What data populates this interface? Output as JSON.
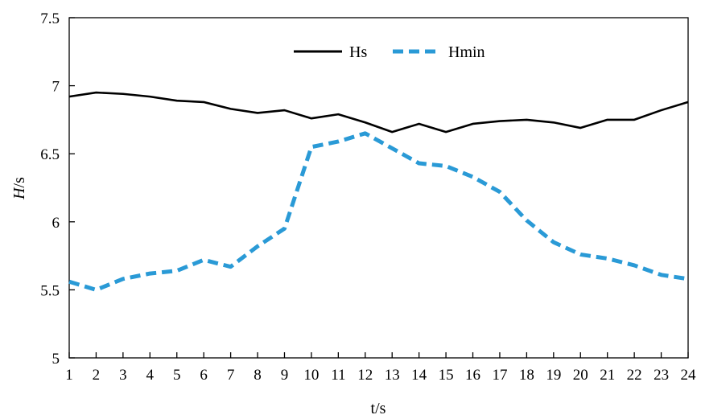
{
  "chart_data": {
    "type": "line",
    "title": "",
    "xlabel": "t/s",
    "ylabel": "H/s",
    "ylabel_italic_part": "H",
    "ylabel_rest": "/s",
    "x": [
      1,
      2,
      3,
      4,
      5,
      6,
      7,
      8,
      9,
      10,
      11,
      12,
      13,
      14,
      15,
      16,
      17,
      18,
      19,
      20,
      21,
      22,
      23,
      24
    ],
    "xlim": [
      1,
      24
    ],
    "ylim": [
      5,
      7.5
    ],
    "yticks": [
      "5",
      "5.5",
      "6",
      "6.5",
      "7",
      "7.5"
    ],
    "ytick_values": [
      5,
      5.5,
      6,
      6.5,
      7,
      7.5
    ],
    "grid": false,
    "legend_position": "top-center",
    "series": [
      {
        "name": "Hs",
        "color": "#000000",
        "style": "solid",
        "values": [
          6.92,
          6.95,
          6.94,
          6.92,
          6.89,
          6.88,
          6.83,
          6.8,
          6.82,
          6.76,
          6.79,
          6.73,
          6.66,
          6.72,
          6.66,
          6.72,
          6.74,
          6.75,
          6.73,
          6.69,
          6.75,
          6.75,
          6.82,
          6.88
        ]
      },
      {
        "name": "Hmin",
        "color": "#2a9ad6",
        "style": "dashed",
        "values": [
          5.56,
          5.5,
          5.58,
          5.62,
          5.64,
          5.72,
          5.67,
          5.82,
          5.95,
          6.55,
          6.59,
          6.65,
          6.54,
          6.43,
          6.41,
          6.33,
          6.22,
          6.01,
          5.85,
          5.76,
          5.73,
          5.68,
          5.61,
          5.58
        ]
      }
    ]
  }
}
